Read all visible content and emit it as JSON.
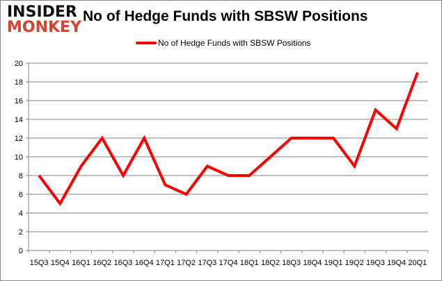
{
  "logo": {
    "line1": "INSIDER",
    "line2": "MONKEY"
  },
  "chart_data": {
    "type": "line",
    "title": "No of Hedge Funds with SBSW Positions",
    "legend_position": "top",
    "grid": true,
    "categories": [
      "15Q3",
      "15Q4",
      "16Q1",
      "16Q2",
      "16Q3",
      "16Q4",
      "17Q1",
      "17Q2",
      "17Q3",
      "17Q4",
      "18Q1",
      "18Q2",
      "18Q3",
      "18Q4",
      "19Q1",
      "19Q2",
      "19Q3",
      "19Q4",
      "20Q1"
    ],
    "series": [
      {
        "name": "No of Hedge Funds with SBSW Positions",
        "color": "#ff0000",
        "values": [
          8,
          5,
          9,
          12,
          8,
          12,
          7,
          6,
          9,
          8,
          8,
          10,
          12,
          12,
          12,
          9,
          15,
          13,
          19
        ]
      }
    ],
    "ylim": [
      0,
      20
    ],
    "yticks": [
      0,
      2,
      4,
      6,
      8,
      10,
      12,
      14,
      16,
      18,
      20
    ],
    "xlabel": "",
    "ylabel": ""
  }
}
